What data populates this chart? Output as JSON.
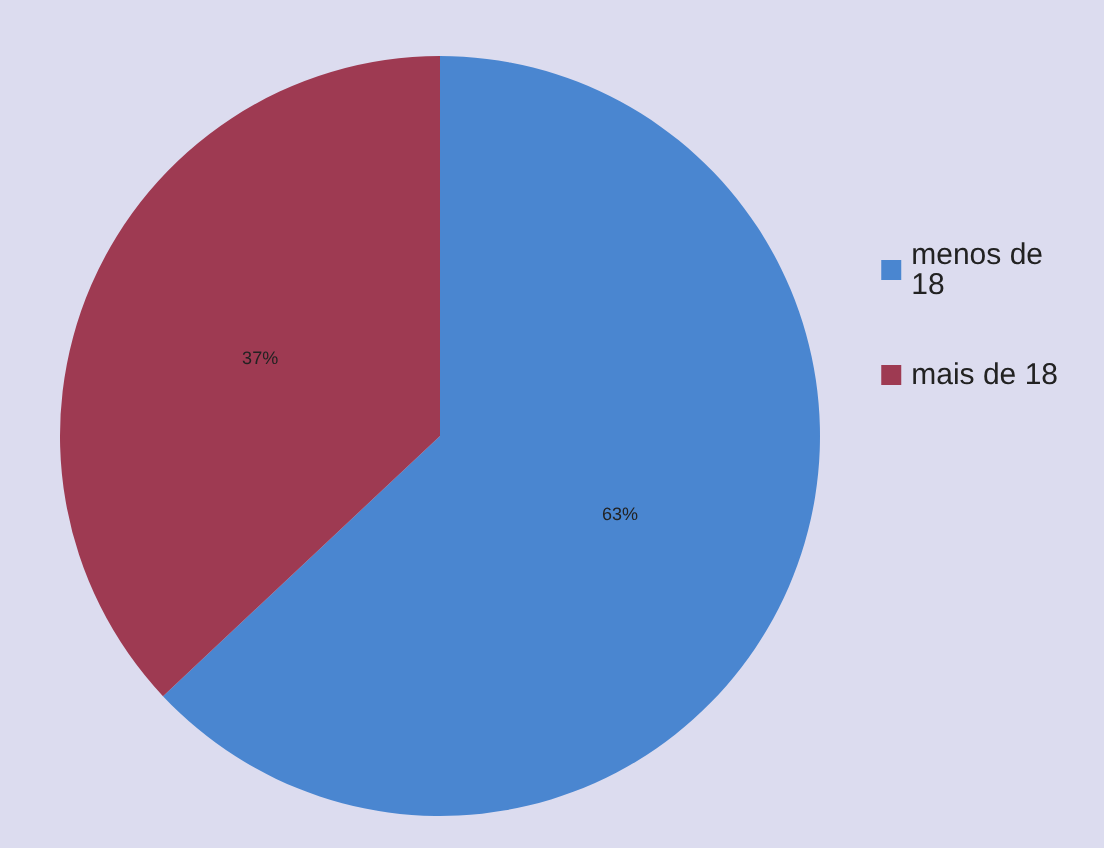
{
  "chart_data": {
    "type": "pie",
    "categories": [
      "menos de 18",
      "mais de 18"
    ],
    "values": [
      63,
      37
    ],
    "colors": [
      "#4a86d0",
      "#9e3a52"
    ],
    "value_labels": [
      "63%",
      "37%"
    ],
    "legend": "right"
  }
}
